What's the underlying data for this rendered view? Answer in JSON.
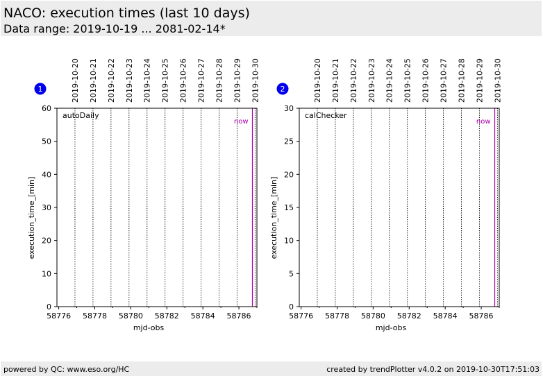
{
  "header": {
    "title": "NACO: execution times (last 10 days)",
    "subtitle": "Data range: 2019-10-19 ... 2081-02-14*"
  },
  "footer": {
    "left": "powered by QC: www.eso.org/HC",
    "right": "created by trendPlotter v4.0.2 on 2019-10-30T17:51:03"
  },
  "colors": {
    "now_line": "#aa00aa",
    "badge": "#0000ee",
    "header_bg": "#ececec"
  },
  "chart_data": [
    {
      "type": "line",
      "badge": "1",
      "name_label": "autoDaily",
      "now_label": "now",
      "now_x": 58786.75,
      "xlabel": "mjd-obs",
      "ylabel": "execution_time_[min]",
      "xlim": [
        58775.9,
        58787.0
      ],
      "ylim": [
        0,
        60
      ],
      "xticks": [
        58776,
        58778,
        58780,
        58782,
        58784,
        58786
      ],
      "yticks": [
        0,
        10,
        20,
        30,
        40,
        50,
        60
      ],
      "day_lines": [
        58776.9,
        58777.9,
        58778.9,
        58779.9,
        58780.9,
        58781.9,
        58782.9,
        58783.9,
        58784.9,
        58785.9,
        58786.9
      ],
      "dates": [
        "2019-10-20",
        "2019-10-21",
        "2019-10-22",
        "2019-10-23",
        "2019-10-24",
        "2019-10-25",
        "2019-10-26",
        "2019-10-27",
        "2019-10-28",
        "2019-10-29",
        "2019-10-30"
      ],
      "series": []
    },
    {
      "type": "line",
      "badge": "2",
      "name_label": "calChecker",
      "now_label": "now",
      "now_x": 58786.75,
      "xlabel": "mjd-obs",
      "ylabel": "execution_time_[min]",
      "xlim": [
        58775.9,
        58787.0
      ],
      "ylim": [
        0,
        30
      ],
      "xticks": [
        58776,
        58778,
        58780,
        58782,
        58784,
        58786
      ],
      "yticks": [
        0,
        5,
        10,
        15,
        20,
        25,
        30
      ],
      "day_lines": [
        58776.9,
        58777.9,
        58778.9,
        58779.9,
        58780.9,
        58781.9,
        58782.9,
        58783.9,
        58784.9,
        58785.9,
        58786.9
      ],
      "dates": [
        "2019-10-20",
        "2019-10-21",
        "2019-10-22",
        "2019-10-23",
        "2019-10-24",
        "2019-10-25",
        "2019-10-26",
        "2019-10-27",
        "2019-10-28",
        "2019-10-29",
        "2019-10-30"
      ],
      "series": []
    }
  ]
}
